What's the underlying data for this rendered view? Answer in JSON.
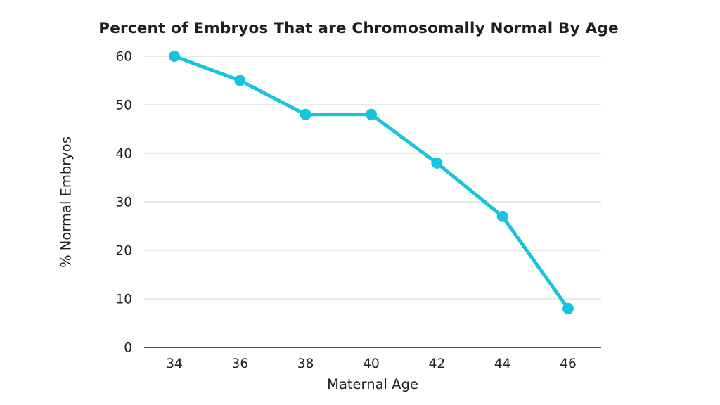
{
  "page": {
    "background": "#ffffff"
  },
  "chart_data": {
    "type": "line",
    "title": "Percent of Embryos That are Chromosomally Normal By Age",
    "xlabel": "Maternal Age",
    "ylabel": "% Normal Embryos",
    "categories": [
      34,
      36,
      38,
      40,
      42,
      44,
      46
    ],
    "series": [
      {
        "name": "% Normal Embryos",
        "values": [
          60,
          55,
          48,
          48,
          38,
          27,
          8
        ]
      }
    ],
    "ylim": [
      0,
      60
    ],
    "ytick_step": 10,
    "yticks": [
      0,
      10,
      20,
      30,
      40,
      50,
      60
    ],
    "grid": "horizontal",
    "legend": "none",
    "colors": {
      "line": "#17c4dc",
      "marker": "#17c4dc",
      "gridline": "#e3e3e3",
      "axis_line": "#555555",
      "text": "#1f1f1f"
    }
  }
}
